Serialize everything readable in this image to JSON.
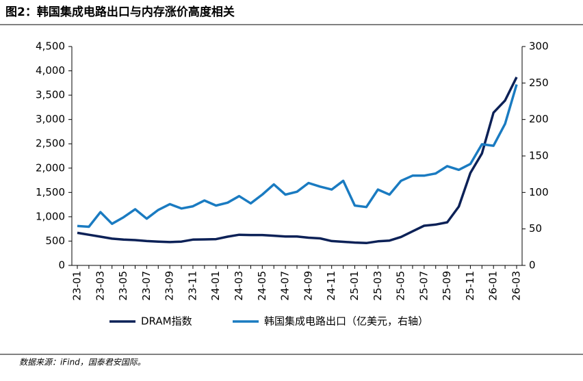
{
  "chart_data": {
    "type": "line",
    "title": "图2：韩国集成电路出口与内存涨价高度相关",
    "source": "数据来源：iFind，国泰君安国际。",
    "categories": [
      "23-01",
      null,
      "23-03",
      null,
      "23-05",
      null,
      "23-07",
      null,
      "23-09",
      null,
      "23-11",
      null,
      "24-01",
      null,
      "24-03",
      null,
      "24-05",
      null,
      "24-07",
      null,
      "24-09",
      null,
      "24-11",
      null,
      "25-01",
      null,
      "25-03",
      null,
      "25-05",
      null,
      "25-07",
      null,
      "25-09",
      null,
      "25-11",
      null,
      "26-01",
      null,
      "26-03"
    ],
    "series": [
      {
        "name": "DRAM指数",
        "color": "#0c2157",
        "values": [
          670,
          630,
          590,
          550,
          530,
          520,
          500,
          490,
          480,
          490,
          530,
          535,
          540,
          590,
          630,
          625,
          625,
          610,
          595,
          595,
          570,
          555,
          500,
          485,
          470,
          460,
          495,
          510,
          585,
          700,
          815,
          840,
          886,
          1210,
          1900,
          2300,
          3140,
          3390,
          3870
        ]
      },
      {
        "name": "韩国集成电路出口（亿美元，右轴）",
        "color": "#1a7bc1",
        "axis": "y2",
        "values": [
          54,
          53,
          73,
          57,
          66,
          77,
          64,
          76,
          84,
          78,
          81,
          89,
          82,
          86,
          95,
          85,
          97,
          111,
          97,
          101,
          113,
          108,
          104,
          116,
          82,
          80,
          104,
          97,
          116,
          123,
          123,
          126,
          136,
          131,
          139,
          166,
          164,
          194,
          248
        ]
      }
    ],
    "ylim": [
      0,
      4500
    ],
    "yticks": [
      0,
      500,
      {
        "value": 1000,
        "label": "1,000"
      },
      {
        "value": 1500,
        "label": "1,500"
      },
      {
        "value": 2000,
        "label": "2,000"
      },
      {
        "value": 2500,
        "label": "2,500"
      },
      {
        "value": 3000,
        "label": "3,000"
      },
      {
        "value": 3500,
        "label": "3,500"
      },
      {
        "value": 4000,
        "label": "4,000"
      },
      {
        "value": 4500,
        "label": "4,500"
      }
    ],
    "y2lim": [
      0,
      300
    ],
    "y2ticks": [
      0,
      50,
      100,
      150,
      200,
      250,
      300
    ]
  }
}
